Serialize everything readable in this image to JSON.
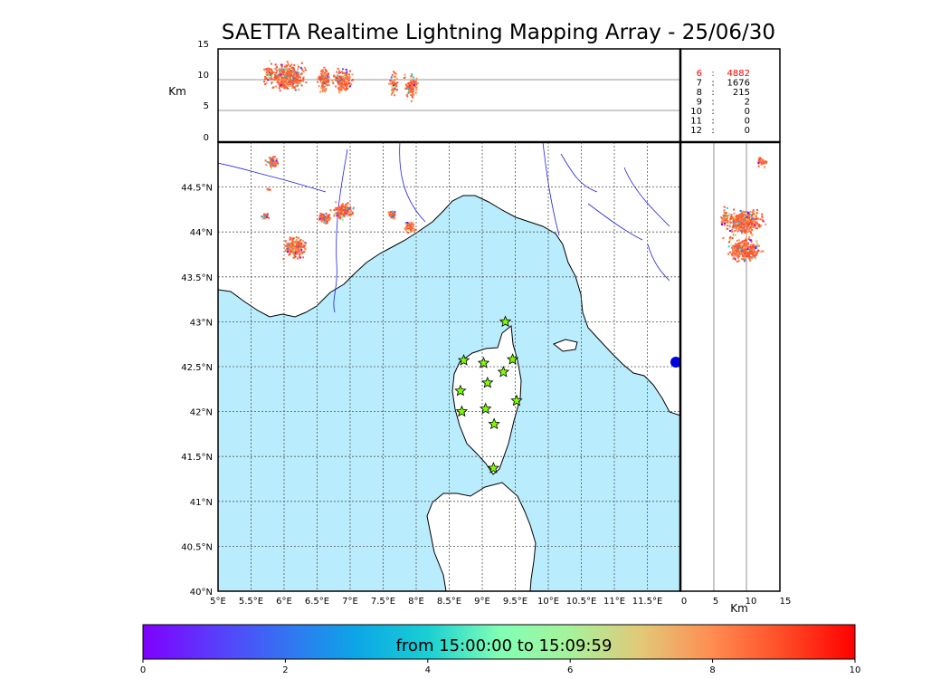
{
  "title": "SAETTA Realtime Lightning Mapping Array - 25/06/30",
  "colors": {
    "sea": "#b9ecfc",
    "land": "#ffffff",
    "river": "#2020e0",
    "station_fill": "#7cfc00",
    "highlight": "#ff0000"
  },
  "top_panel": {
    "ylabel": "Km",
    "yticks": [
      "15",
      "10",
      "5",
      "0"
    ]
  },
  "right_panel": {
    "xlabel": "Km",
    "xticks": [
      "0",
      "5",
      "10",
      "15"
    ]
  },
  "station_counts": [
    {
      "n": "6",
      "sep": ":",
      "count": "4882",
      "highlight": true
    },
    {
      "n": "7",
      "sep": ":",
      "count": "1676",
      "highlight": false
    },
    {
      "n": "8",
      "sep": ":",
      "count": "215",
      "highlight": false
    },
    {
      "n": "9",
      "sep": ":",
      "count": "2",
      "highlight": false
    },
    {
      "n": "10",
      "sep": ":",
      "count": "0",
      "highlight": false
    },
    {
      "n": "11",
      "sep": ":",
      "count": "0",
      "highlight": false
    },
    {
      "n": "12",
      "sep": ":",
      "count": "0",
      "highlight": false
    }
  ],
  "map": {
    "lon_ticks": [
      "5°E",
      "5.5°E",
      "6°E",
      "6.5°E",
      "7°E",
      "7.5°E",
      "8°E",
      "8.5°E",
      "9°E",
      "9.5°E",
      "10°E",
      "10.5°E",
      "11°E",
      "11.5°E"
    ],
    "lat_ticks": [
      "40°N",
      "40.5°N",
      "41°N",
      "41.5°N",
      "42°N",
      "42.5°N",
      "43°N",
      "43.5°N",
      "44°N",
      "44.5°N"
    ],
    "lon_range": [
      5.0,
      12.0
    ],
    "lat_range": [
      40.0,
      45.0
    ],
    "stations": [
      {
        "lon": 9.35,
        "lat": 43.0
      },
      {
        "lon": 8.72,
        "lat": 42.57
      },
      {
        "lon": 9.02,
        "lat": 42.54
      },
      {
        "lon": 9.46,
        "lat": 42.58
      },
      {
        "lon": 9.32,
        "lat": 42.44
      },
      {
        "lon": 9.08,
        "lat": 42.32
      },
      {
        "lon": 8.67,
        "lat": 42.23
      },
      {
        "lon": 9.52,
        "lat": 42.12
      },
      {
        "lon": 9.05,
        "lat": 42.03
      },
      {
        "lon": 8.69,
        "lat": 42.0
      },
      {
        "lon": 9.18,
        "lat": 41.86
      },
      {
        "lon": 9.17,
        "lat": 41.37
      }
    ]
  },
  "colorbar": {
    "label": "from 15:00:00 to 15:09:59",
    "ticks": [
      "0",
      "2",
      "4",
      "6",
      "8",
      "10"
    ],
    "min": 0,
    "max": 10
  }
}
